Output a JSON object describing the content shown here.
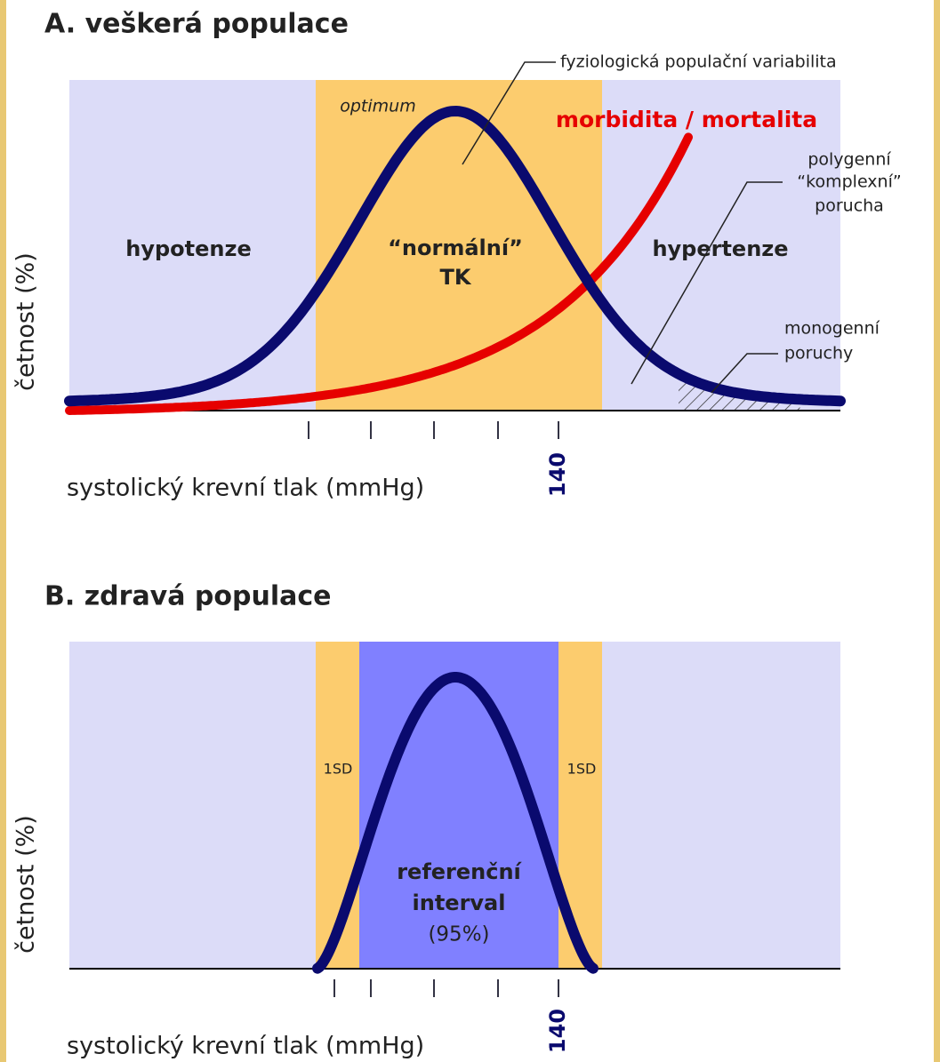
{
  "panel_a": {
    "title": "A. veškerá populace",
    "curve_label": "fyziologická populační variabilita",
    "optimum": "optimum",
    "risk": "morbidita / mortalita",
    "polygenic": [
      "polygenní",
      "“komplexní”",
      "porucha"
    ],
    "hypotension": "hypotenze",
    "normal": [
      "“normální”",
      "TK"
    ],
    "hypertension": "hypertenze",
    "monogenic": [
      "monogenní",
      "poruchy"
    ],
    "y_label": "četnost (%)",
    "x_label": "systolický krevní tlak (mmHg)",
    "tick": "140"
  },
  "panel_b": {
    "title": "B. zdravá populace",
    "sd_left": "1SD",
    "sd_right": "1SD",
    "reference": [
      "referenční",
      "interval",
      "(95%)"
    ],
    "y_label": "četnost (%)",
    "x_label": "systolický krevní tlak (mmHg)",
    "tick": "140"
  }
}
